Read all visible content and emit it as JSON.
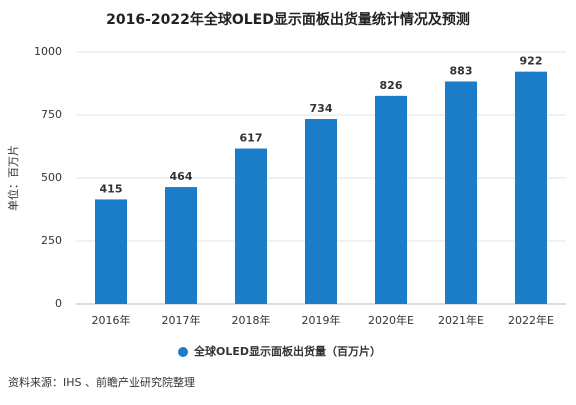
{
  "chart_data": {
    "type": "bar",
    "title": "2016-2022年全球OLED显示面板出货量统计情况及预测",
    "y_label": "单位：百万片",
    "categories": [
      "2016年",
      "2017年",
      "2018年",
      "2019年",
      "2020年E",
      "2021年E",
      "2022年E"
    ],
    "series": [
      {
        "name": "全球OLED显示面板出货量（百万片）",
        "color": "#1b7dc7",
        "values": [
          415,
          464,
          617,
          734,
          826,
          883,
          922
        ]
      }
    ],
    "ylim": [
      0,
      1000
    ],
    "yticks": [
      0,
      250,
      500,
      750,
      1000
    ],
    "grid": true,
    "source": "资料来源：IHS 、前瞻产业研究院整理"
  }
}
